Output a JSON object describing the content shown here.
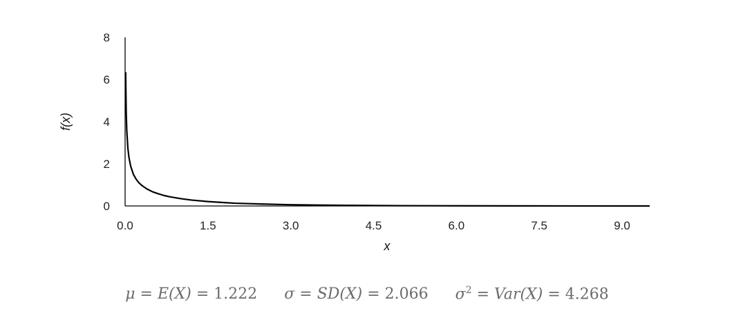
{
  "chart_data": {
    "type": "line",
    "xlabel": "x",
    "ylabel": "f(x)",
    "xlim": [
      0,
      9.5
    ],
    "ylim": [
      0,
      8
    ],
    "x_ticks": [
      "0.0",
      "1.5",
      "3.0",
      "4.5",
      "6.0",
      "7.5",
      "9.0"
    ],
    "y_ticks": [
      "0",
      "2",
      "4",
      "6",
      "8"
    ],
    "grid": false,
    "series": [
      {
        "color": "#000000",
        "x": [
          0.01,
          0.02,
          0.03,
          0.05,
          0.07,
          0.1,
          0.15,
          0.2,
          0.25,
          0.3,
          0.4,
          0.5,
          0.6,
          0.7,
          0.8,
          1.0,
          1.2,
          1.5,
          1.8,
          2.0,
          2.5,
          3.0,
          3.5,
          4.0,
          4.5,
          5.0,
          6.0,
          7.0,
          8.0,
          9.0,
          9.5
        ],
        "y": [
          6.35,
          4.45,
          3.6,
          2.75,
          2.3,
          1.9,
          1.5,
          1.27,
          1.1,
          0.98,
          0.8,
          0.67,
          0.58,
          0.5,
          0.44,
          0.35,
          0.28,
          0.21,
          0.16,
          0.13,
          0.09,
          0.06,
          0.04,
          0.03,
          0.02,
          0.015,
          0.008,
          0.004,
          0.002,
          0.001,
          0.001
        ]
      }
    ]
  },
  "stats": {
    "mu_symbol": "μ",
    "mu_expr": "E(X)",
    "mu_value": "1.222",
    "sd_symbol": "σ",
    "sd_expr": "SD(X)",
    "sd_value": "2.066",
    "var_symbol": "σ",
    "var_power": "2",
    "var_expr": "Var(X)",
    "var_value": "4.268"
  }
}
